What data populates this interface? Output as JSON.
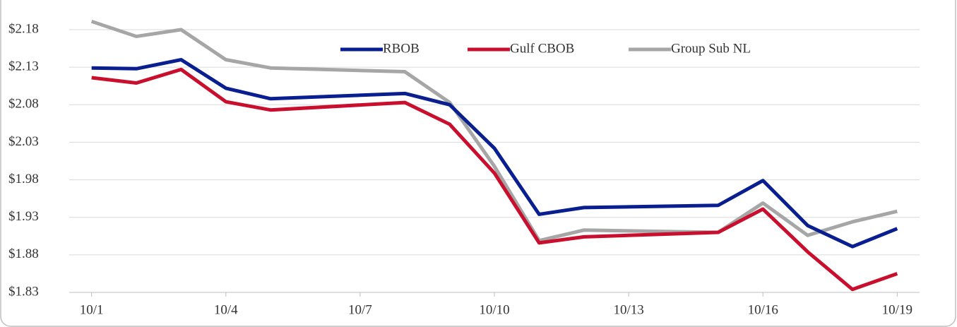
{
  "chart_data": {
    "type": "line",
    "x": [
      1,
      2,
      3,
      4,
      5,
      8,
      9,
      10,
      11,
      12,
      15,
      16,
      17,
      18,
      19
    ],
    "xlim": [
      0.5,
      19.5
    ],
    "xticks": [
      {
        "value": 1,
        "label": "10/1"
      },
      {
        "value": 4,
        "label": "10/4"
      },
      {
        "value": 7,
        "label": "10/7"
      },
      {
        "value": 10,
        "label": "10/10"
      },
      {
        "value": 13,
        "label": "10/13"
      },
      {
        "value": 16,
        "label": "10/16"
      },
      {
        "value": 19,
        "label": "10/19"
      }
    ],
    "ylim": [
      1.83,
      2.18
    ],
    "yticks": [
      {
        "value": 1.83,
        "label": "$1.83"
      },
      {
        "value": 1.88,
        "label": "$1.88"
      },
      {
        "value": 1.93,
        "label": "$1.93"
      },
      {
        "value": 1.98,
        "label": "$1.98"
      },
      {
        "value": 2.03,
        "label": "$2.03"
      },
      {
        "value": 2.08,
        "label": "$2.08"
      },
      {
        "value": 2.13,
        "label": "$2.13"
      },
      {
        "value": 2.18,
        "label": "$2.18"
      }
    ],
    "grid": true,
    "legend": "top",
    "series": [
      {
        "name": "RBOB",
        "color": "#0a1f8f",
        "values": [
          2.129,
          2.128,
          2.14,
          2.102,
          2.088,
          2.095,
          2.08,
          2.022,
          1.934,
          1.943,
          1.946,
          1.979,
          1.919,
          1.891,
          1.915
        ]
      },
      {
        "name": "Gulf CBOB",
        "color": "#c8102e",
        "values": [
          2.116,
          2.109,
          2.127,
          2.084,
          2.073,
          2.083,
          2.054,
          1.989,
          1.896,
          1.904,
          1.91,
          1.941,
          1.884,
          1.834,
          1.855
        ]
      },
      {
        "name": "Group Sub NL",
        "color": "#a6a6a6",
        "values": [
          2.191,
          2.171,
          2.18,
          2.14,
          2.129,
          2.124,
          2.083,
          1.998,
          1.899,
          1.913,
          1.91,
          1.949,
          1.906,
          1.924,
          1.938
        ]
      }
    ]
  }
}
